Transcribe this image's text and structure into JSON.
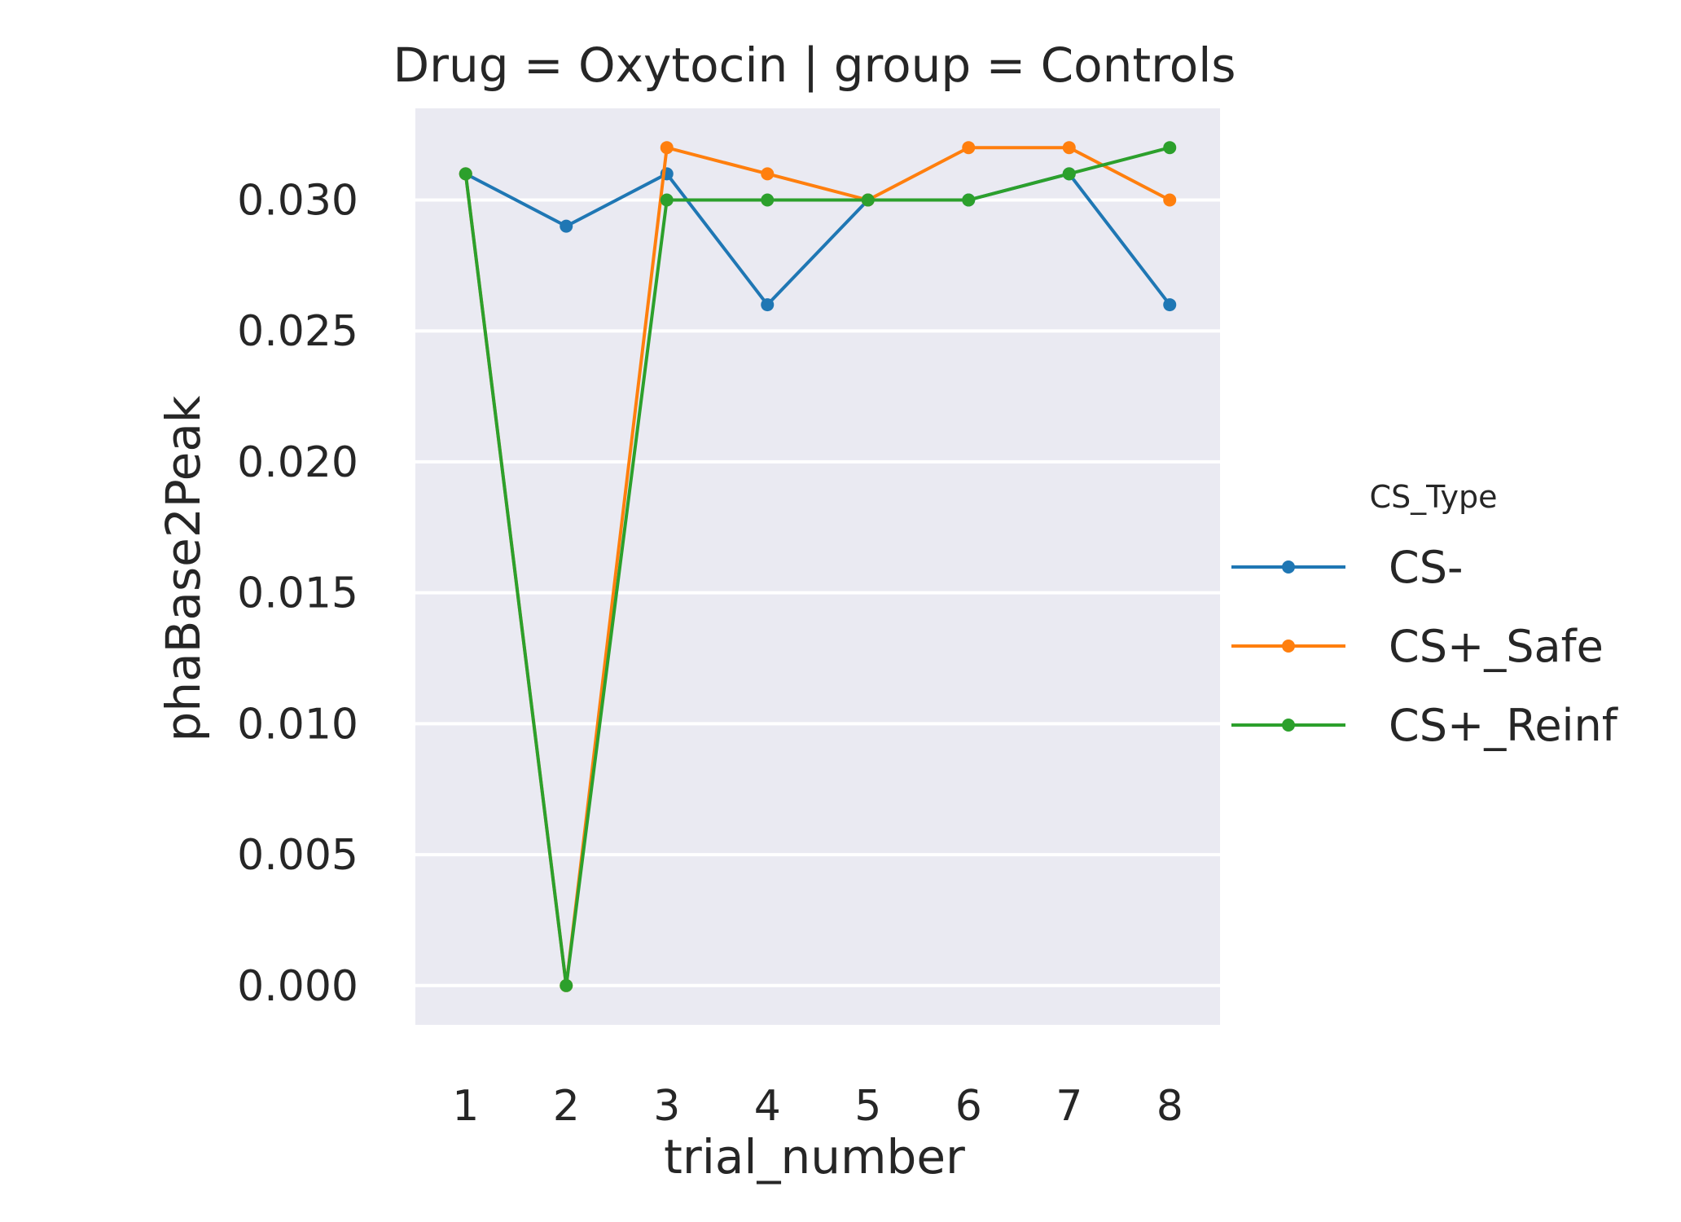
{
  "chart_data": {
    "type": "line",
    "title": "Drug = Oxytocin | group = Controls",
    "xlabel": "trial_number",
    "ylabel": "phaBase2Peak",
    "x": [
      1,
      2,
      3,
      4,
      5,
      6,
      7,
      8
    ],
    "xticks": [
      "1",
      "2",
      "3",
      "4",
      "5",
      "6",
      "7",
      "8"
    ],
    "yticks": [
      "0.000",
      "0.005",
      "0.010",
      "0.015",
      "0.020",
      "0.025",
      "0.030"
    ],
    "ylim": [
      -0.0015,
      0.0335
    ],
    "grid": true,
    "legend": {
      "title": "CS_Type",
      "placement": "right"
    },
    "series": [
      {
        "name": "CS-",
        "color": "#1f77b4",
        "values": [
          0.031,
          0.029,
          0.031,
          0.026,
          0.03,
          0.03,
          0.031,
          0.026
        ]
      },
      {
        "name": "CS+_Safe",
        "color": "#ff7f0e",
        "values": [
          0.031,
          0.0,
          0.032,
          0.031,
          0.03,
          0.032,
          0.032,
          0.03
        ]
      },
      {
        "name": "CS+_Reinf",
        "color": "#2ca02c",
        "values": [
          0.031,
          0.0,
          0.03,
          0.03,
          0.03,
          0.03,
          0.031,
          0.032
        ]
      }
    ],
    "background_color": "#eaeaf2"
  }
}
